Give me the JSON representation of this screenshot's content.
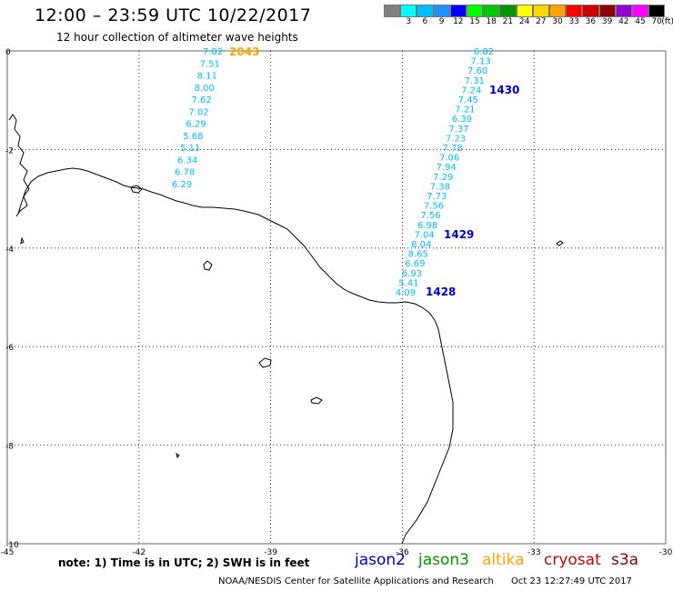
{
  "header": {
    "title": "12:00 – 23:59 UTC 10/22/2017",
    "subtitle": "12 hour collection of altimeter wave heights"
  },
  "colorbar": {
    "unit": "(ft)",
    "items": [
      {
        "label": "",
        "color": "#7f7f7f"
      },
      {
        "label": "3",
        "color": "#00ffff"
      },
      {
        "label": "6",
        "color": "#00bfff"
      },
      {
        "label": "9",
        "color": "#1e90ff"
      },
      {
        "label": "12",
        "color": "#0000ff"
      },
      {
        "label": "15",
        "color": "#00ff00"
      },
      {
        "label": "18",
        "color": "#00c800"
      },
      {
        "label": "21",
        "color": "#009600"
      },
      {
        "label": "24",
        "color": "#ffff00"
      },
      {
        "label": "27",
        "color": "#ffd700"
      },
      {
        "label": "30",
        "color": "#ffa500"
      },
      {
        "label": "33",
        "color": "#ff0000"
      },
      {
        "label": "36",
        "color": "#cd0000"
      },
      {
        "label": "39",
        "color": "#8b0000"
      },
      {
        "label": "42",
        "color": "#9400d3"
      },
      {
        "label": "45",
        "color": "#ff00ff"
      },
      {
        "label": "70",
        "color": "#000000"
      }
    ]
  },
  "map": {
    "lon_range": [
      -45,
      -30
    ],
    "lat_range": [
      -10,
      0
    ],
    "x_ticks": [
      "-45",
      "-42",
      "-39",
      "-36",
      "-33",
      "-30"
    ],
    "y_ticks": [
      "0",
      "-2",
      "-4",
      "-6",
      "-8",
      "-10"
    ],
    "track_color": "#00bfff",
    "west_track": {
      "time_label": "2043",
      "time_color": "#ffa500",
      "values": [
        "7.82",
        "7.51",
        "8.11",
        "8.00",
        "7.62",
        "7.02",
        "6.29",
        "5.68",
        "5.11",
        "6.34",
        "6.78",
        "6.29"
      ]
    },
    "east_track": {
      "values": [
        "6.82",
        "7.13",
        "7.60",
        "7.31",
        "7.24",
        "7.45",
        "7.21",
        "6.39",
        "7.37",
        "7.23",
        "7.78",
        "7.06",
        "7.94",
        "7.29",
        "7.38",
        "7.73",
        "7.56",
        "7.56",
        "6.98",
        "7.04",
        "8.04",
        "8.65",
        "6.69",
        "6.93",
        "5.41",
        "4.09"
      ],
      "time_labels": [
        "1430",
        "1429",
        "1428"
      ],
      "time_color": "#0000cd"
    }
  },
  "footer": {
    "note": "note:  1) Time is in UTC;  2) SWH is in feet",
    "satellites": [
      {
        "name": "jason2",
        "color": "#0000cd"
      },
      {
        "name": "jason3",
        "color": "#009600"
      },
      {
        "name": "altika",
        "color": "#ffa500"
      },
      {
        "name": "cryosat",
        "color": "#cd0000"
      },
      {
        "name": "s3a",
        "color": "#8b0000"
      }
    ],
    "credit": "NOAA/NESDIS Center for Satellite Applications and Research",
    "timestamp": "Oct 23 12:27:49 UTC 2017"
  }
}
